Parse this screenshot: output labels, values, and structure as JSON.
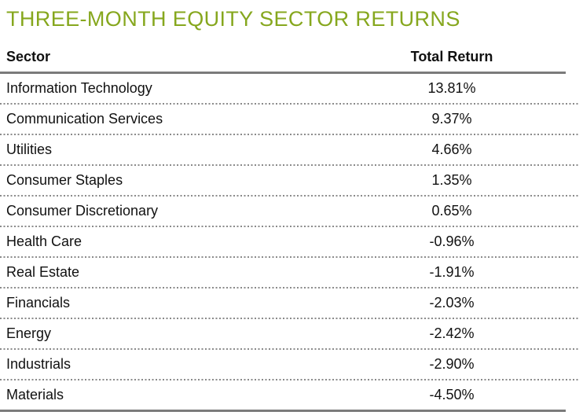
{
  "title": "THREE-MONTH EQUITY SECTOR RETURNS",
  "colors": {
    "accent_green": "#86A71E",
    "line_gray": "#7b7b7b",
    "dot_gray": "#8a8a8a",
    "text_color": "#111111"
  },
  "table": {
    "columns": {
      "sector": "Sector",
      "total_return": "Total Return"
    },
    "rows": [
      {
        "sector": "Information Technology",
        "total_return": "13.81%"
      },
      {
        "sector": "Communication Services",
        "total_return": "9.37%"
      },
      {
        "sector": "Utilities",
        "total_return": "4.66%"
      },
      {
        "sector": "Consumer Staples",
        "total_return": "1.35%"
      },
      {
        "sector": "Consumer Discretionary",
        "total_return": "0.65%"
      },
      {
        "sector": "Health Care",
        "total_return": "-0.96%"
      },
      {
        "sector": "Real Estate",
        "total_return": "-1.91%"
      },
      {
        "sector": "Financials",
        "total_return": "-2.03%"
      },
      {
        "sector": "Energy",
        "total_return": "-2.42%"
      },
      {
        "sector": "Industrials",
        "total_return": "-2.90%"
      },
      {
        "sector": "Materials",
        "total_return": "-4.50%"
      }
    ]
  },
  "chart_data": {
    "type": "table",
    "title": "THREE-MONTH EQUITY SECTOR RETURNS",
    "columns": [
      "Sector",
      "Total Return"
    ],
    "categories": [
      "Information Technology",
      "Communication Services",
      "Utilities",
      "Consumer Staples",
      "Consumer Discretionary",
      "Health Care",
      "Real Estate",
      "Financials",
      "Energy",
      "Industrials",
      "Materials"
    ],
    "values": [
      13.81,
      9.37,
      4.66,
      1.35,
      0.65,
      -0.96,
      -1.91,
      -2.03,
      -2.42,
      -2.9,
      -4.5
    ],
    "value_unit": "percent",
    "sort_order": "descending"
  }
}
